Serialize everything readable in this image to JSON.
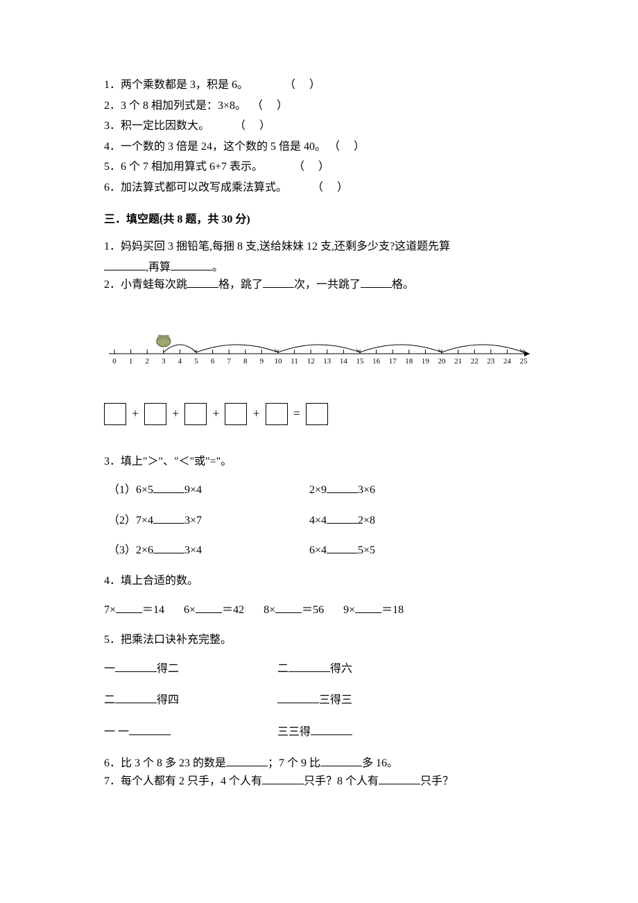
{
  "judgment": {
    "items": [
      "1．两个乘数都是 3，积是 6。             （     ）",
      "2．3 个 8 相加列式是：3×8。  （     ）",
      "3．积一定比因数大。         （     ）",
      "4．一个数的 3 倍是 24，这个数的 5 倍是 40。 （     ）",
      "5．6 个 7 相加用算式 6+7 表示。           （     ）",
      "6．加法算式都可以改写成乘法算式。         （     ）"
    ]
  },
  "section3_title": "三．填空题(共 8 题，共 30 分)",
  "q1": {
    "line1": "1．妈妈买回 3 捆铅笔,每捆 8 支,送给妹妹 12 支,还剩多少支?这道题先算",
    "tail": ",再算"
  },
  "q2": {
    "prefix": "2．小青蛙每次跳",
    "mid1": "格，跳了",
    "mid2": "次，一共跳了",
    "suffix": "格。"
  },
  "number_line": {
    "min": 0,
    "max": 25,
    "tick_step": 1,
    "frog_start": 3,
    "arc_points": [
      5,
      10,
      15,
      20,
      25
    ],
    "axis_color": "#000000",
    "arc_color": "#000000",
    "tick_font_size": 11
  },
  "addition_eq": {
    "box_count": 5,
    "plus": "+",
    "equals": "="
  },
  "q3": {
    "intro": "3．填上\"＞\"、\"＜\"或\"=\"。",
    "rows": [
      {
        "left_a": "（1）6×5",
        "left_b": "9×4",
        "right_a": "2×9",
        "right_b": "3×6"
      },
      {
        "left_a": "（2）7×4",
        "left_b": "3×7",
        "right_a": "4×4",
        "right_b": "2×8"
      },
      {
        "left_a": "（3）2×6",
        "left_b": "3×4",
        "right_a": "6×4",
        "right_b": "5×5"
      }
    ]
  },
  "q4": {
    "intro": "4．填上合适的数。",
    "items": [
      {
        "pre": "7×",
        "post": "＝14"
      },
      {
        "pre": "6×",
        "post": "＝42"
      },
      {
        "pre": "8×",
        "post": "＝56"
      },
      {
        "pre": "9×",
        "post": "＝18"
      }
    ]
  },
  "q5": {
    "intro": "5．把乘法口诀补充完整。",
    "rows": [
      {
        "la": "一",
        "lb": "得二",
        "ra": "二",
        "rb": "得六"
      },
      {
        "la": "二",
        "lb": "得四",
        "ra": "",
        "rb": "三得三"
      },
      {
        "la": "一 一",
        "lb": "",
        "ra": "三三得",
        "rb": ""
      }
    ]
  },
  "q6": {
    "a": "6．比 3 个 8 多 23 的数是",
    "b": "；7 个 9 比",
    "c": "多 16。"
  },
  "q7": {
    "a": "7．每个人都有 2 只手，4 个人有",
    "b": "只手？8 个人有",
    "c": "只手？"
  }
}
